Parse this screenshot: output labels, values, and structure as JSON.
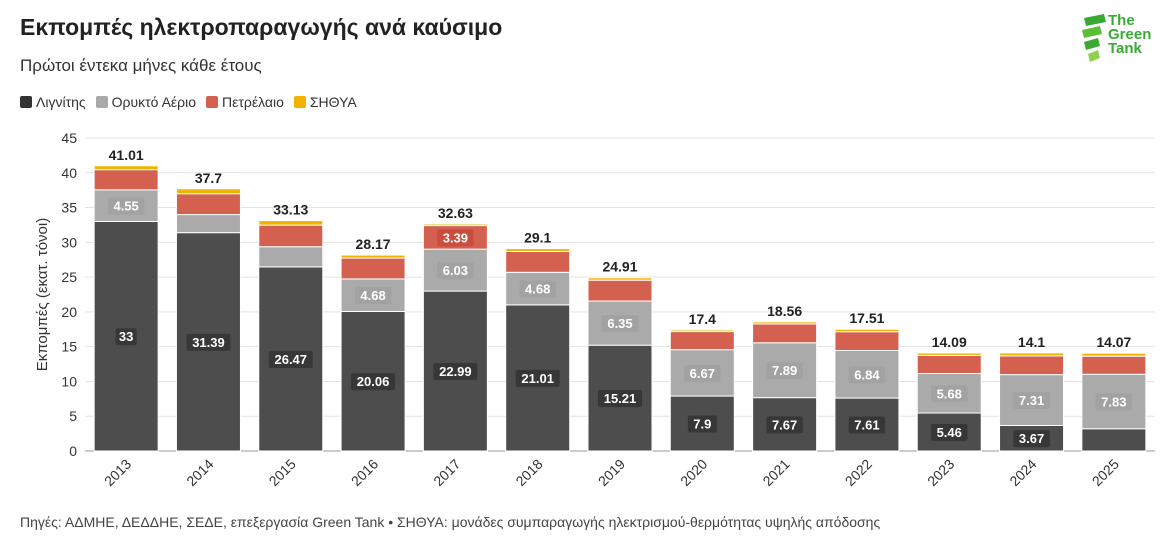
{
  "header": {
    "title": "Εκπομπές ηλεκτροπαραγωγής ανά καύσιμο",
    "subtitle": "Πρώτοι έντεκα μήνες κάθε έτους"
  },
  "logo": {
    "line1": "The",
    "line2": "Green",
    "line3": "Tank"
  },
  "legend": [
    {
      "label": "Λιγνίτης",
      "color": "#4d4d4d"
    },
    {
      "label": "Ορυκτό Αέριο",
      "color": "#aaaaaa"
    },
    {
      "label": "Πετρέλαιο",
      "color": "#d4604f"
    },
    {
      "label": "ΣΗΘΥΑ",
      "color": "#f0b400"
    }
  ],
  "footer": {
    "source": "Πηγές: ΑΔΜΗΕ, ΔΕΔΔΗΕ, ΣΕΔΕ, επεξεργασία Green Tank • ΣΗΘΥΑ: μονάδες συμπαραγωγής ηλεκτρισμού-θερμότητας υψηλής απόδοσης"
  },
  "chart_data": {
    "type": "bar",
    "stacked": true,
    "ylabel": "Εκπομπές (εκατ. τόνοι)",
    "ylim": [
      0,
      45
    ],
    "yticks": [
      0,
      5,
      10,
      15,
      20,
      25,
      30,
      35,
      40,
      45
    ],
    "categories": [
      "2013",
      "2014",
      "2015",
      "2016",
      "2017",
      "2018",
      "2019",
      "2020",
      "2021",
      "2022",
      "2023",
      "2024",
      "2025"
    ],
    "series": [
      {
        "name": "Λιγνίτης",
        "color": "#4d4d4d",
        "values": [
          33,
          31.39,
          26.47,
          20.06,
          22.99,
          21.01,
          15.21,
          7.9,
          7.67,
          7.61,
          5.46,
          3.67,
          3.2
        ],
        "labels": [
          "33",
          "31.39",
          "26.47",
          "20.06",
          "22.99",
          "21.01",
          "15.21",
          "7.9",
          "7.67",
          "7.61",
          "5.46",
          "3.67",
          ""
        ]
      },
      {
        "name": "Ορυκτό Αέριο",
        "color": "#aaaaaa",
        "values": [
          4.55,
          2.6,
          2.9,
          4.68,
          6.03,
          4.68,
          6.35,
          6.67,
          7.89,
          6.84,
          5.68,
          7.31,
          7.83
        ],
        "labels": [
          "4.55",
          "",
          "",
          "4.68",
          "6.03",
          "4.68",
          "6.35",
          "6.67",
          "7.89",
          "6.84",
          "5.68",
          "7.31",
          "7.83"
        ]
      },
      {
        "name": "Πετρέλαιο",
        "color": "#d4604f",
        "values": [
          2.9,
          3.0,
          3.1,
          3.0,
          3.39,
          3.0,
          3.0,
          2.6,
          2.7,
          2.7,
          2.6,
          2.7,
          2.6
        ],
        "labels": [
          "",
          "",
          "",
          "",
          "3.39",
          "",
          "",
          "",
          "",
          "",
          "",
          "",
          ""
        ]
      },
      {
        "name": "ΣΗΘΥΑ",
        "color": "#f0b400",
        "values": [
          0.56,
          0.71,
          0.66,
          0.43,
          0.22,
          0.41,
          0.35,
          0.23,
          0.3,
          0.36,
          0.35,
          0.42,
          0.44
        ],
        "labels": [
          "",
          "",
          "",
          "",
          "",
          "",
          "",
          "",
          "",
          "",
          "",
          "",
          ""
        ]
      }
    ],
    "totals": [
      "41.01",
      "37.7",
      "33.13",
      "28.17",
      "32.63",
      "29.1",
      "24.91",
      "17.4",
      "18.56",
      "17.51",
      "14.09",
      "14.1",
      "14.07"
    ],
    "grid": true,
    "legend_position": "top-left"
  }
}
